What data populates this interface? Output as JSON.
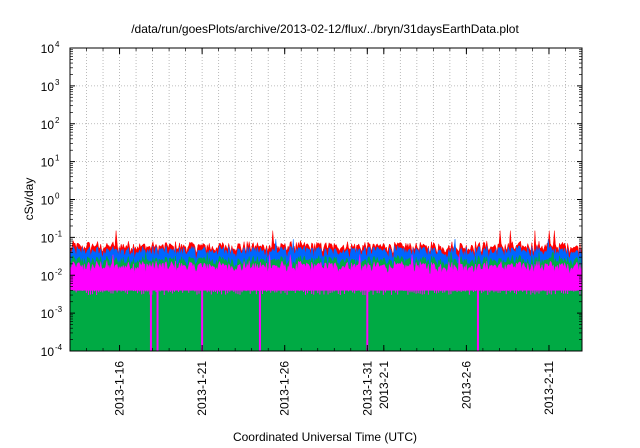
{
  "chart_data": {
    "type": "area",
    "title": "/data/run/goesPlots/archive/2013-02-12/flux/../bryn/31daysEarthData.plot",
    "xlabel": "Coordinated Universal Time (UTC)",
    "ylabel": "cSv/day",
    "yscale": "log",
    "ylim": [
      0.0001,
      10000
    ],
    "xlim": [
      "2013-01-13",
      "2013-02-13"
    ],
    "grid": true,
    "y_ticks": [
      {
        "base": "10",
        "exp": "-4",
        "value": 0.0001
      },
      {
        "base": "10",
        "exp": "-3",
        "value": 0.001
      },
      {
        "base": "10",
        "exp": "-2",
        "value": 0.01
      },
      {
        "base": "10",
        "exp": "-1",
        "value": 0.1
      },
      {
        "base": "10",
        "exp": "0",
        "value": 1
      },
      {
        "base": "10",
        "exp": "1",
        "value": 10
      },
      {
        "base": "10",
        "exp": "2",
        "value": 100
      },
      {
        "base": "10",
        "exp": "3",
        "value": 1000
      },
      {
        "base": "10",
        "exp": "4",
        "value": 10000
      }
    ],
    "x_ticks": [
      {
        "label": "2013-1-16",
        "date": "2013-01-16"
      },
      {
        "label": "2013-1-21",
        "date": "2013-01-21"
      },
      {
        "label": "2013-1-26",
        "date": "2013-01-26"
      },
      {
        "label": "2013-1-31",
        "date": "2013-01-31"
      },
      {
        "label": "2013-2-1",
        "date": "2013-02-01"
      },
      {
        "label": "2013-2-6",
        "date": "2013-02-06"
      },
      {
        "label": "2013-2-11",
        "date": "2013-02-11"
      }
    ],
    "series": [
      {
        "color": "#ff0000",
        "typical": 0.06,
        "max": 0.15
      },
      {
        "color": "#0066ff",
        "typical": 0.045,
        "max": 0.09
      },
      {
        "color": "#00aa44",
        "typical": 0.025,
        "max": 0.04
      },
      {
        "color": "#ff00ff",
        "typical": 0.018,
        "max": 0.035,
        "min": 0.004
      }
    ],
    "dropouts": [
      {
        "date": "2013-01-17.9",
        "min": 0.0001
      },
      {
        "date": "2013-01-18.3",
        "min": 0.0001
      },
      {
        "date": "2013-01-21.0",
        "min": 0.0001
      },
      {
        "date": "2013-01-24.5",
        "min": 0.0001
      },
      {
        "date": "2013-01-31.0",
        "min": 0.0001
      },
      {
        "date": "2013-02-06.7",
        "min": 0.0001
      }
    ]
  }
}
